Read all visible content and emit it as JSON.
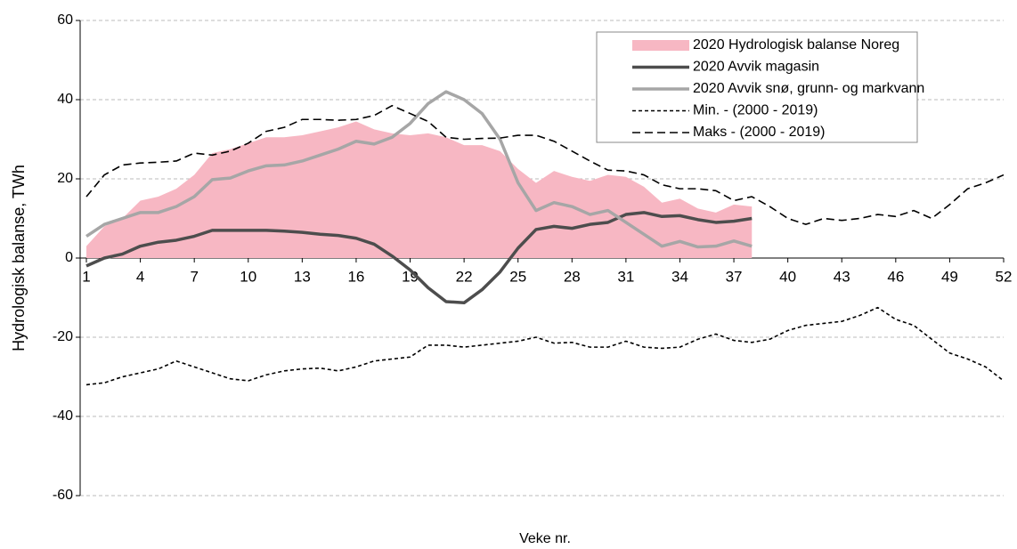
{
  "chart_data": {
    "type": "line",
    "x_label": "Veke nr.",
    "y_label": "Hydrologisk balanse, TWh",
    "x": [
      1,
      2,
      3,
      4,
      5,
      6,
      7,
      8,
      9,
      10,
      11,
      12,
      13,
      14,
      15,
      16,
      17,
      18,
      19,
      20,
      21,
      22,
      23,
      24,
      25,
      26,
      27,
      28,
      29,
      30,
      31,
      32,
      33,
      34,
      35,
      36,
      37,
      38,
      39,
      40,
      41,
      42,
      43,
      44,
      45,
      46,
      47,
      48,
      49,
      50,
      51,
      52
    ],
    "xlim": [
      1,
      52
    ],
    "xticks": [
      1,
      4,
      7,
      10,
      13,
      16,
      19,
      22,
      25,
      28,
      31,
      34,
      37,
      40,
      43,
      46,
      49,
      52
    ],
    "ylim": [
      -60,
      60
    ],
    "yticks": [
      -60,
      -40,
      -20,
      0,
      20,
      40,
      60
    ],
    "grid": true,
    "legend": "top-right",
    "series": [
      {
        "name": "2020 Hydrologisk balanse Noreg",
        "kind": "area",
        "color": "#f7b7c3",
        "values": [
          3,
          8,
          10,
          14.5,
          15.5,
          17.5,
          21,
          26.5,
          27.5,
          29,
          30.5,
          30.5,
          31,
          32,
          33,
          34.5,
          32.5,
          31.5,
          31,
          31.5,
          30.5,
          28.5,
          28.5,
          27,
          22.5,
          19,
          22,
          20.5,
          19.5,
          21,
          20.5,
          18,
          14,
          15,
          12.5,
          11.5,
          13.5,
          13,
          null,
          null,
          null,
          null,
          null,
          null,
          null,
          null,
          null,
          null,
          null,
          null,
          null,
          null
        ]
      },
      {
        "name": "2020 Avvik magasin",
        "kind": "line",
        "color": "#4d4d4d",
        "values": [
          -2,
          0,
          1,
          3,
          4,
          4.5,
          5.5,
          7,
          7,
          7,
          7,
          6.8,
          6.5,
          6,
          5.7,
          5,
          3.5,
          0.5,
          -3,
          -7.5,
          -11,
          -11.3,
          -8,
          -3.5,
          2.5,
          7.2,
          8,
          7.5,
          8.5,
          9,
          11,
          11.5,
          10.5,
          10.7,
          9.7,
          9,
          9.3,
          10,
          null,
          null,
          null,
          null,
          null,
          null,
          null,
          null,
          null,
          null,
          null,
          null,
          null,
          null
        ]
      },
      {
        "name": "2020 Avvik snø, grunn- og markvann",
        "kind": "line",
        "color": "#a6a6a6",
        "values": [
          5.5,
          8.5,
          10,
          11.5,
          11.5,
          13,
          15.5,
          19.8,
          20.2,
          22,
          23.3,
          23.5,
          24.5,
          26,
          27.5,
          29.5,
          28.8,
          30.5,
          34,
          39,
          42,
          40,
          36.5,
          30,
          19,
          12,
          14,
          13,
          11,
          12,
          9,
          6,
          3,
          4.2,
          2.8,
          3,
          4.3,
          3,
          null,
          null,
          null,
          null,
          null,
          null,
          null,
          null,
          null,
          null,
          null,
          null,
          null,
          null
        ]
      },
      {
        "name": "Min. - (2000 - 2019)",
        "kind": "line",
        "dash": "short",
        "color": "#000000",
        "values": [
          -32,
          -31.5,
          -30,
          -29,
          -28,
          -26,
          -27.5,
          -29,
          -30.5,
          -31,
          -29.5,
          -28.5,
          -28,
          -27.8,
          -28.5,
          -27.5,
          -26,
          -25.5,
          -25,
          -22,
          -22,
          -22.5,
          -22,
          -21.5,
          -21,
          -20,
          -21.5,
          -21.3,
          -22.5,
          -22.5,
          -21,
          -22.5,
          -22.8,
          -22.5,
          -20.5,
          -19.2,
          -20.8,
          -21.3,
          -20.5,
          -18.3,
          -17,
          -16.5,
          -16,
          -14.5,
          -12.5,
          -15.5,
          -17,
          -20.5,
          -24,
          -25.5,
          -27.5,
          -31
        ]
      },
      {
        "name": "Maks - (2000 - 2019)",
        "kind": "line",
        "dash": "long",
        "color": "#000000",
        "values": [
          15.5,
          21,
          23.5,
          24,
          24.2,
          24.5,
          26.5,
          26,
          27,
          29,
          32,
          33,
          35,
          35,
          34.8,
          35,
          36,
          38.5,
          36.5,
          34.5,
          30.5,
          30,
          30.2,
          30.3,
          31,
          31,
          29.5,
          27,
          24.5,
          22.2,
          22,
          21,
          18.5,
          17.5,
          17.5,
          17,
          14.5,
          15.5,
          13,
          10,
          8.5,
          10,
          9.5,
          10,
          11,
          10.5,
          12,
          10,
          13.5,
          17.5,
          19,
          21
        ]
      }
    ]
  }
}
